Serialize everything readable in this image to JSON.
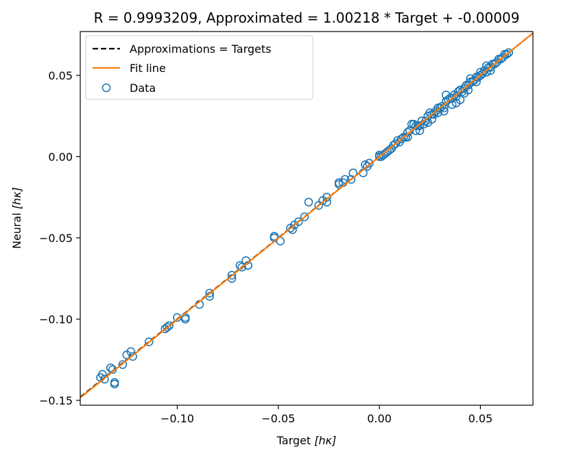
{
  "chart_data": {
    "type": "scatter",
    "title": "R = 0.9993209, Approximated = 1.00218 * Target + -0.00009",
    "xlabel_main": "Target ",
    "xlabel_unit": "[hκ]",
    "ylabel_main": "Neural ",
    "ylabel_unit": "[hκ]",
    "xlim": [
      -0.148,
      0.076
    ],
    "ylim": [
      -0.153,
      0.077
    ],
    "xticks": [
      -0.1,
      -0.05,
      0.0,
      0.05
    ],
    "xtick_labels": [
      "−0.10",
      "−0.05",
      "0.00",
      "0.05"
    ],
    "yticks": [
      -0.15,
      -0.1,
      -0.05,
      0.0,
      0.05
    ],
    "ytick_labels": [
      "−0.15",
      "−0.10",
      "−0.05",
      "0.00",
      "0.05"
    ],
    "legend_position": "top-left",
    "fit": {
      "slope": 1.00218,
      "intercept": -9e-05
    },
    "series": [
      {
        "name": "Approximations = Targets",
        "kind": "line",
        "style": "dashed",
        "color": "#000000"
      },
      {
        "name": "Fit line",
        "kind": "line",
        "style": "solid",
        "color": "#ff7f0e"
      },
      {
        "name": "Data",
        "kind": "scatter",
        "color": "#1f77b4"
      }
    ],
    "points": [
      [
        -0.138,
        -0.136
      ],
      [
        -0.137,
        -0.134
      ],
      [
        -0.136,
        -0.137
      ],
      [
        -0.133,
        -0.13
      ],
      [
        -0.132,
        -0.131
      ],
      [
        -0.131,
        -0.139
      ],
      [
        -0.131,
        -0.14
      ],
      [
        -0.127,
        -0.128
      ],
      [
        -0.125,
        -0.122
      ],
      [
        -0.123,
        -0.12
      ],
      [
        -0.122,
        -0.123
      ],
      [
        -0.114,
        -0.114
      ],
      [
        -0.106,
        -0.106
      ],
      [
        -0.105,
        -0.105
      ],
      [
        -0.104,
        -0.104
      ],
      [
        -0.1,
        -0.099
      ],
      [
        -0.096,
        -0.099
      ],
      [
        -0.096,
        -0.1
      ],
      [
        -0.089,
        -0.091
      ],
      [
        -0.084,
        -0.086
      ],
      [
        -0.084,
        -0.084
      ],
      [
        -0.073,
        -0.075
      ],
      [
        -0.073,
        -0.073
      ],
      [
        -0.069,
        -0.067
      ],
      [
        -0.068,
        -0.068
      ],
      [
        -0.066,
        -0.064
      ],
      [
        -0.065,
        -0.067
      ],
      [
        -0.065,
        -0.067
      ],
      [
        -0.052,
        -0.05
      ],
      [
        -0.052,
        -0.049
      ],
      [
        -0.049,
        -0.052
      ],
      [
        -0.044,
        -0.044
      ],
      [
        -0.043,
        -0.045
      ],
      [
        -0.042,
        -0.042
      ],
      [
        -0.04,
        -0.04
      ],
      [
        -0.037,
        -0.037
      ],
      [
        -0.035,
        -0.028
      ],
      [
        -0.03,
        -0.03
      ],
      [
        -0.028,
        -0.027
      ],
      [
        -0.026,
        -0.028
      ],
      [
        -0.026,
        -0.025
      ],
      [
        -0.02,
        -0.017
      ],
      [
        -0.02,
        -0.016
      ],
      [
        -0.018,
        -0.016
      ],
      [
        -0.017,
        -0.014
      ],
      [
        -0.014,
        -0.014
      ],
      [
        -0.013,
        -0.01
      ],
      [
        -0.008,
        -0.01
      ],
      [
        -0.007,
        -0.005
      ],
      [
        -0.006,
        -0.006
      ],
      [
        -0.005,
        -0.004
      ],
      [
        0.0,
        0.0
      ],
      [
        0.0,
        0.001
      ],
      [
        0.001,
        0.0
      ],
      [
        0.002,
        0.001
      ],
      [
        0.003,
        0.002
      ],
      [
        0.004,
        0.003
      ],
      [
        0.005,
        0.004
      ],
      [
        0.006,
        0.005
      ],
      [
        0.007,
        0.007
      ],
      [
        0.008,
        0.008
      ],
      [
        0.009,
        0.01
      ],
      [
        0.01,
        0.009
      ],
      [
        0.011,
        0.011
      ],
      [
        0.012,
        0.012
      ],
      [
        0.013,
        0.012
      ],
      [
        0.014,
        0.015
      ],
      [
        0.015,
        0.016
      ],
      [
        0.016,
        0.02
      ],
      [
        0.017,
        0.02
      ],
      [
        0.018,
        0.016
      ],
      [
        0.019,
        0.019
      ],
      [
        0.02,
        0.019
      ],
      [
        0.021,
        0.022
      ],
      [
        0.022,
        0.02
      ],
      [
        0.023,
        0.022
      ],
      [
        0.024,
        0.025
      ],
      [
        0.025,
        0.027
      ],
      [
        0.026,
        0.026
      ],
      [
        0.027,
        0.026
      ],
      [
        0.028,
        0.028
      ],
      [
        0.029,
        0.03
      ],
      [
        0.03,
        0.03
      ],
      [
        0.031,
        0.031
      ],
      [
        0.032,
        0.03
      ],
      [
        0.033,
        0.034
      ],
      [
        0.034,
        0.035
      ],
      [
        0.035,
        0.036
      ],
      [
        0.036,
        0.036
      ],
      [
        0.037,
        0.038
      ],
      [
        0.038,
        0.037
      ],
      [
        0.039,
        0.04
      ],
      [
        0.04,
        0.041
      ],
      [
        0.041,
        0.04
      ],
      [
        0.042,
        0.042
      ],
      [
        0.043,
        0.044
      ],
      [
        0.044,
        0.044
      ],
      [
        0.045,
        0.046
      ],
      [
        0.046,
        0.046
      ],
      [
        0.047,
        0.047
      ],
      [
        0.048,
        0.049
      ],
      [
        0.049,
        0.049
      ],
      [
        0.05,
        0.05
      ],
      [
        0.051,
        0.051
      ],
      [
        0.052,
        0.053
      ],
      [
        0.053,
        0.052
      ],
      [
        0.054,
        0.055
      ],
      [
        0.055,
        0.055
      ],
      [
        0.056,
        0.057
      ],
      [
        0.057,
        0.057
      ],
      [
        0.058,
        0.058
      ],
      [
        0.059,
        0.06
      ],
      [
        0.06,
        0.06
      ],
      [
        0.061,
        0.061
      ],
      [
        0.062,
        0.063
      ],
      [
        0.063,
        0.063
      ],
      [
        0.064,
        0.064
      ],
      [
        0.036,
        0.032
      ],
      [
        0.038,
        0.033
      ],
      [
        0.04,
        0.035
      ],
      [
        0.042,
        0.039
      ],
      [
        0.032,
        0.028
      ],
      [
        0.026,
        0.023
      ],
      [
        0.014,
        0.012
      ],
      [
        0.02,
        0.016
      ],
      [
        0.033,
        0.038
      ],
      [
        0.045,
        0.048
      ],
      [
        0.05,
        0.052
      ],
      [
        0.055,
        0.053
      ],
      [
        0.029,
        0.027
      ],
      [
        0.024,
        0.021
      ],
      [
        0.018,
        0.019
      ],
      [
        0.044,
        0.041
      ],
      [
        0.048,
        0.046
      ],
      [
        0.053,
        0.056
      ]
    ]
  }
}
